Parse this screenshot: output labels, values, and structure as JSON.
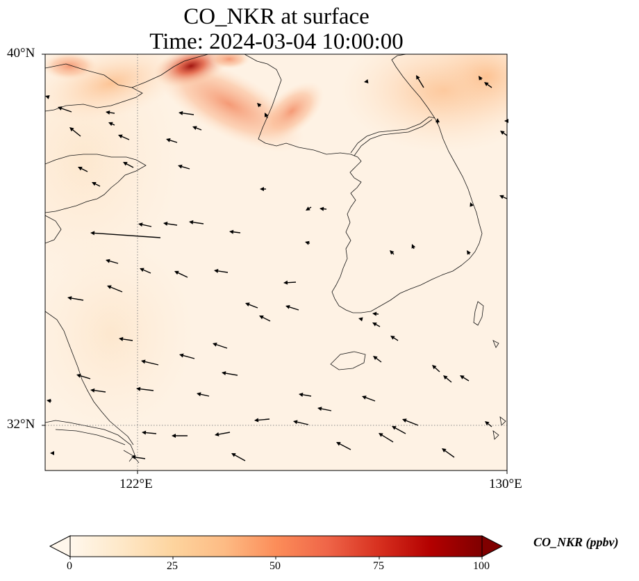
{
  "title": {
    "line1": "CO_NKR at surface",
    "line2": "Time: 2024-03-04 10:00:00"
  },
  "axes": {
    "lat_ticks": [
      "40°N",
      "32°N"
    ],
    "lon_ticks": [
      "122°E",
      "130°E"
    ],
    "extent": {
      "lon_min": 120.0,
      "lon_max": 130.0,
      "lat_min": 31.0,
      "lat_max": 40.0
    },
    "gridlines": "dotted grey at 122°E and 32°N"
  },
  "colorbar": {
    "label": "CO_NKR (ppbv)",
    "ticks": [
      "0",
      "25",
      "50",
      "75",
      "100"
    ],
    "range": [
      0,
      100
    ],
    "extend": "both",
    "colormap": "OrRd",
    "colors": [
      "#fff7ec",
      "#fee8c8",
      "#fdd49e",
      "#fdbb84",
      "#fc8d59",
      "#ef6548",
      "#d7301f",
      "#b30000",
      "#7f0000"
    ]
  },
  "field_description": {
    "background_value_ppbv": 3,
    "hotspots": [
      {
        "area": "Liaodong / Bohai north coast",
        "lon": 123.1,
        "lat": 39.9,
        "value_ppbv": 85
      },
      {
        "area": "Plume southeast of Bohai",
        "lon": 123.8,
        "lat": 39.2,
        "value_ppbv": 50
      },
      {
        "area": "NE corner (North Korea interior)",
        "lon": 129.5,
        "lat": 39.5,
        "value_ppbv": 25
      }
    ]
  }
}
